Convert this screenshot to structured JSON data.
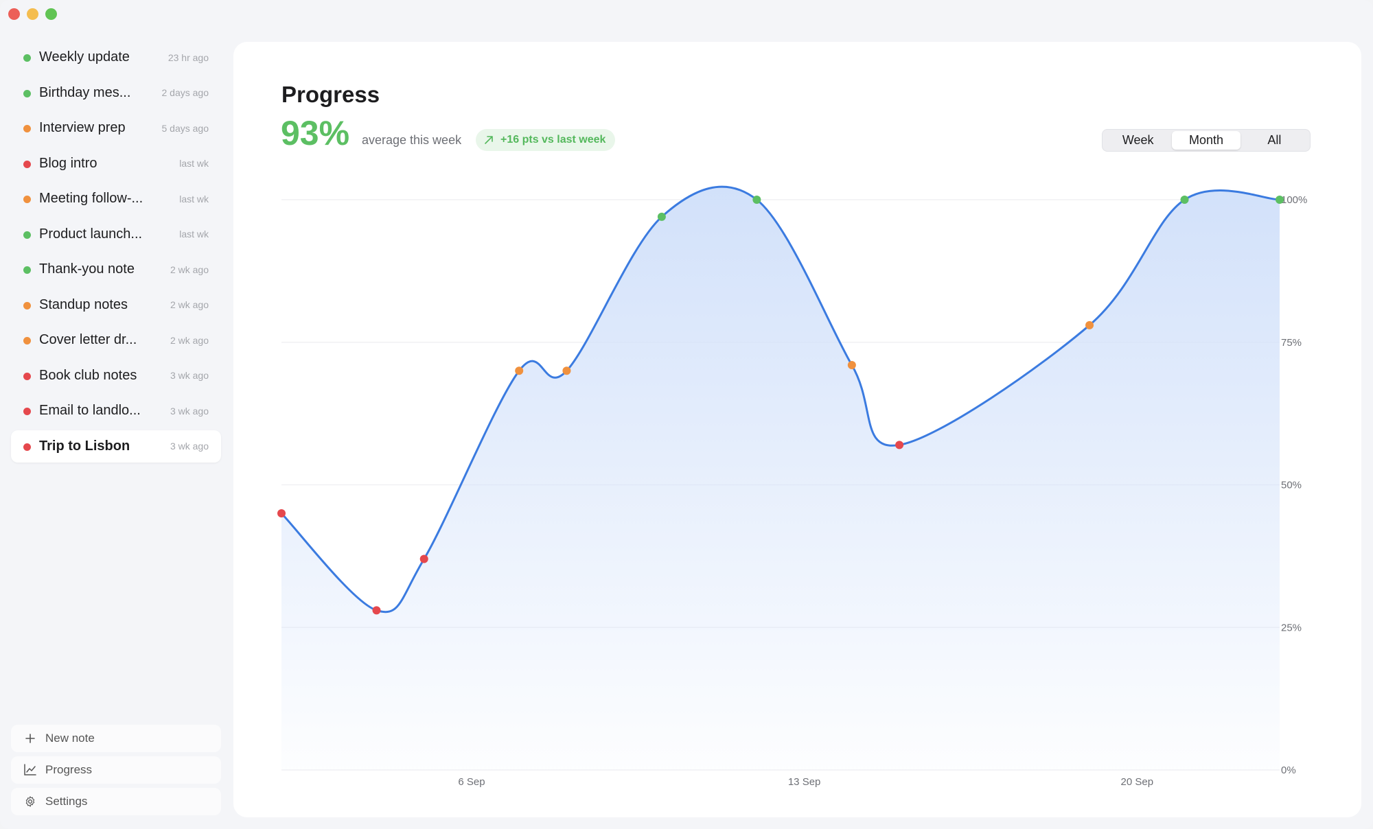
{
  "sidebar": {
    "notes": [
      {
        "title": "Weekly update",
        "time": "23 hr ago",
        "status_color": "#5cbf63"
      },
      {
        "title": "Birthday mes...",
        "time": "2 days ago",
        "status_color": "#5cbf63"
      },
      {
        "title": "Interview prep",
        "time": "5 days ago",
        "status_color": "#f0913e"
      },
      {
        "title": "Blog intro",
        "time": "last wk",
        "status_color": "#e5484d"
      },
      {
        "title": "Meeting follow-...",
        "time": "last wk",
        "status_color": "#f0913e"
      },
      {
        "title": "Product launch...",
        "time": "last wk",
        "status_color": "#5cbf63"
      },
      {
        "title": "Thank-you note",
        "time": "2 wk ago",
        "status_color": "#5cbf63"
      },
      {
        "title": "Standup notes",
        "time": "2 wk ago",
        "status_color": "#f0913e"
      },
      {
        "title": "Cover letter dr...",
        "time": "2 wk ago",
        "status_color": "#f0913e"
      },
      {
        "title": "Book club notes",
        "time": "3 wk ago",
        "status_color": "#e5484d"
      },
      {
        "title": "Email to landlo...",
        "time": "3 wk ago",
        "status_color": "#e5484d"
      },
      {
        "title": "Trip to Lisbon",
        "time": "3 wk ago",
        "status_color": "#e5484d",
        "active": true
      }
    ],
    "actions": {
      "new_note": "New note",
      "progress": "Progress",
      "settings": "Settings"
    }
  },
  "main": {
    "title": "Progress",
    "big_value": "93%",
    "caption": "average this week",
    "delta": "+16 pts vs last week",
    "ranges": [
      "Week",
      "Month",
      "All"
    ],
    "selected_range": "Month"
  },
  "colors": {
    "line": "#3b7be0",
    "fill": "#d2e1fa",
    "good": "#5cbf63",
    "medium": "#f0913e",
    "bad": "#e5484d",
    "accent_green": "#5cbf63"
  },
  "chart_data": {
    "type": "area",
    "x": [
      "2 Sep",
      "4 Sep",
      "5 Sep",
      "7 Sep",
      "8 Sep",
      "10 Sep",
      "12 Sep",
      "14 Sep",
      "15 Sep",
      "19 Sep",
      "21 Sep",
      "23 Sep"
    ],
    "y": [
      45,
      28,
      37,
      70,
      70,
      97,
      100,
      71,
      57,
      78,
      100,
      100
    ],
    "point_status": [
      "bad",
      "bad",
      "bad",
      "medium",
      "medium",
      "good",
      "good",
      "medium",
      "bad",
      "medium",
      "good",
      "good"
    ],
    "x_tick_labels": [
      "6 Sep",
      "13 Sep",
      "20 Sep"
    ],
    "y_tick_labels": [
      "0%",
      "25%",
      "50%",
      "75%",
      "100%"
    ],
    "ylim": [
      0,
      100
    ],
    "grid": true,
    "legend": "none"
  }
}
